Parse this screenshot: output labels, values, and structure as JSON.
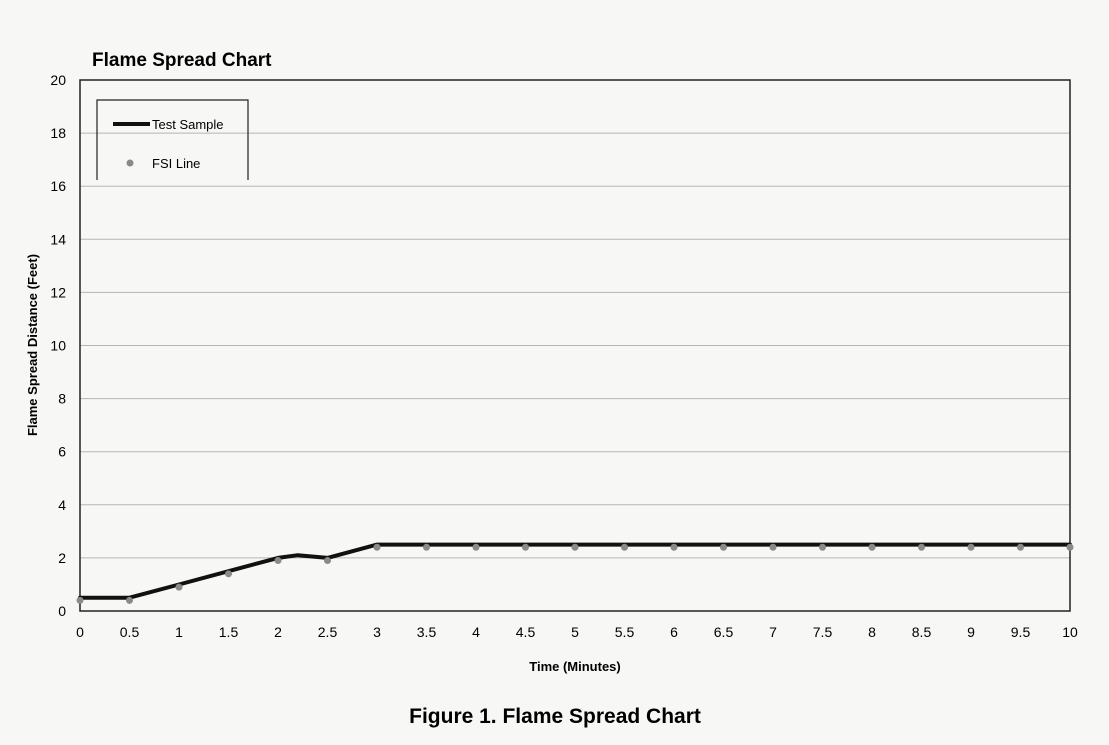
{
  "chart_data": {
    "type": "line",
    "title": "Flame Spread Chart",
    "xlabel": "Time (Minutes)",
    "ylabel": "Flame Spread Distance (Feet)",
    "caption": "Figure 1.  Flame Spread Chart",
    "xlim": [
      0,
      10
    ],
    "ylim": [
      0,
      20
    ],
    "x_ticks": [
      "0",
      "0.5",
      "1",
      "1.5",
      "2",
      "2.5",
      "3",
      "3.5",
      "4",
      "4.5",
      "5",
      "5.5",
      "6",
      "6.5",
      "7",
      "7.5",
      "8",
      "8.5",
      "9",
      "9.5",
      "10"
    ],
    "y_ticks": [
      "0",
      "2",
      "4",
      "6",
      "8",
      "10",
      "12",
      "14",
      "16",
      "18",
      "20"
    ],
    "grid": "horizontal",
    "legend_position": "top-left",
    "series": [
      {
        "name": "Test Sample",
        "style": "line",
        "color": "#111111",
        "x": [
          0,
          0.1,
          0.5,
          1,
          1.5,
          2,
          2.2,
          2.5,
          3,
          3.5,
          4,
          4.5,
          5,
          5.5,
          6,
          6.5,
          7,
          7.5,
          8,
          8.5,
          9,
          9.5,
          10
        ],
        "y": [
          0.5,
          0.5,
          0.5,
          1.0,
          1.5,
          2.0,
          2.1,
          2.0,
          2.5,
          2.5,
          2.5,
          2.5,
          2.5,
          2.5,
          2.5,
          2.5,
          2.5,
          2.5,
          2.5,
          2.5,
          2.5,
          2.5,
          2.5
        ]
      },
      {
        "name": "FSI Line",
        "style": "markers",
        "color": "#8a8a8a",
        "x": [
          0,
          0.5,
          1,
          1.5,
          2,
          2.5,
          3,
          3.5,
          4,
          4.5,
          5,
          5.5,
          6,
          6.5,
          7,
          7.5,
          8,
          8.5,
          9,
          9.5,
          10
        ],
        "y": [
          0.4,
          0.4,
          0.9,
          1.4,
          1.9,
          1.9,
          2.4,
          2.4,
          2.4,
          2.4,
          2.4,
          2.4,
          2.4,
          2.4,
          2.4,
          2.4,
          2.4,
          2.4,
          2.4,
          2.4,
          2.4
        ]
      }
    ]
  }
}
